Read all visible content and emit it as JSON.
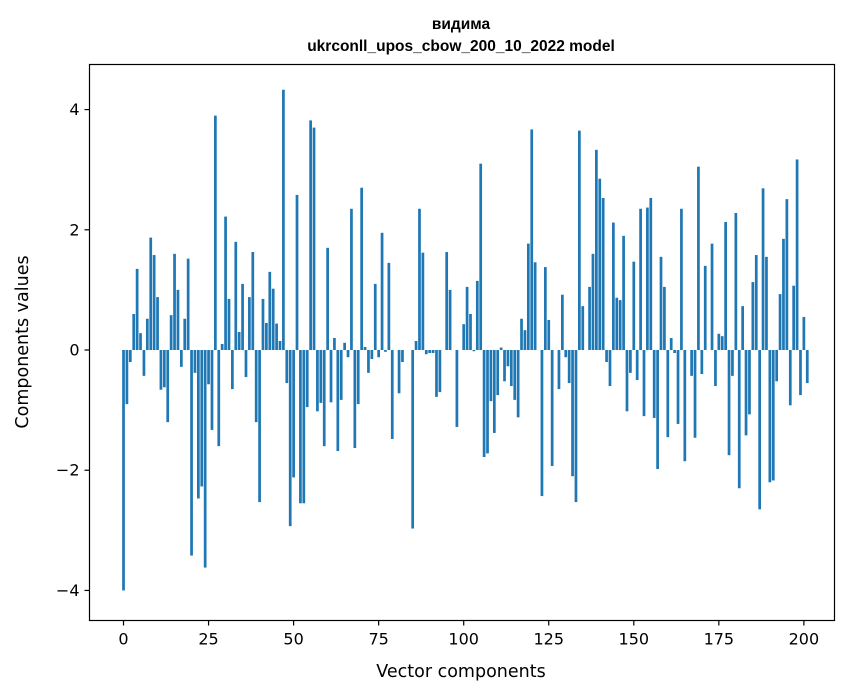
{
  "chart_data": {
    "type": "bar",
    "title": [
      "видима",
      "ukrconll_upos_cbow_200_10_2022 model"
    ],
    "xlabel": "Vector components",
    "ylabel": "Components values",
    "xlim": [
      -10,
      209
    ],
    "ylim": [
      -4.5,
      4.75
    ],
    "xticks": [
      0,
      25,
      50,
      75,
      100,
      125,
      150,
      175,
      200
    ],
    "xtick_labels": [
      "0",
      "25",
      "50",
      "75",
      "100",
      "125",
      "150",
      "175",
      "200"
    ],
    "yticks": [
      -4,
      -2,
      0,
      2,
      4
    ],
    "ytick_labels": [
      "−4",
      "−2",
      "0",
      "2",
      "4"
    ],
    "grid": false,
    "bar_color": "#1f77b4",
    "values": [
      -4.0,
      -0.9,
      -0.2,
      0.6,
      1.35,
      0.28,
      -0.43,
      0.52,
      1.87,
      1.58,
      0.88,
      -0.66,
      -0.62,
      -1.2,
      0.58,
      1.6,
      1.0,
      -0.28,
      0.52,
      1.52,
      -3.42,
      -0.38,
      -2.47,
      -2.27,
      -3.62,
      -0.57,
      -1.33,
      3.9,
      -1.6,
      0.1,
      2.22,
      0.85,
      -0.65,
      1.8,
      0.3,
      1.1,
      -0.45,
      0.88,
      1.63,
      -1.2,
      -2.53,
      0.85,
      0.45,
      1.3,
      1.02,
      0.44,
      0.15,
      4.33,
      -0.55,
      -2.93,
      -2.12,
      2.58,
      -2.55,
      -2.55,
      -0.95,
      3.82,
      3.7,
      -1.02,
      -0.88,
      -1.6,
      1.7,
      -0.87,
      0.2,
      -1.68,
      -0.83,
      0.12,
      -0.12,
      2.35,
      -1.63,
      -0.9,
      2.7,
      0.05,
      -0.38,
      -0.15,
      1.1,
      -0.12,
      1.95,
      -0.03,
      1.45,
      -1.48,
      0.0,
      -0.72,
      -0.2,
      0.0,
      0.0,
      -2.97,
      0.15,
      2.35,
      1.62,
      -0.07,
      -0.05,
      -0.05,
      -0.78,
      -0.7,
      0.0,
      1.63,
      1.0,
      0.0,
      -1.28,
      0.0,
      0.43,
      1.05,
      0.6,
      -0.02,
      1.15,
      3.1,
      -1.78,
      -1.72,
      -0.85,
      -1.38,
      -0.75,
      0.04,
      -0.52,
      -0.27,
      -0.6,
      -0.83,
      -1.12,
      0.52,
      0.33,
      1.77,
      3.67,
      1.46,
      0.0,
      -2.43,
      1.38,
      0.5,
      -1.93,
      0.0,
      -0.65,
      0.92,
      -0.12,
      -0.55,
      -2.1,
      -2.53,
      3.65,
      0.73,
      0.0,
      1.05,
      1.6,
      3.33,
      2.85,
      2.53,
      -0.2,
      -0.6,
      2.12,
      0.87,
      0.83,
      1.9,
      -1.02,
      -0.38,
      1.47,
      -0.5,
      2.35,
      -1.1,
      2.37,
      2.53,
      -1.13,
      -1.98,
      1.55,
      1.05,
      -1.45,
      0.2,
      -0.05,
      -1.23,
      2.35,
      -1.85,
      0.0,
      -0.43,
      -1.46,
      3.05,
      -0.4,
      1.4,
      0.0,
      1.77,
      -0.6,
      0.27,
      0.23,
      2.13,
      -1.75,
      -0.43,
      2.28,
      -2.3,
      0.73,
      -1.42,
      -1.07,
      1.13,
      1.58,
      -2.65,
      2.69,
      1.55,
      -2.2,
      -2.17,
      -0.52,
      0.93,
      1.85,
      2.51,
      -0.92,
      1.07,
      3.17,
      -0.75,
      0.55,
      -0.55
    ]
  }
}
